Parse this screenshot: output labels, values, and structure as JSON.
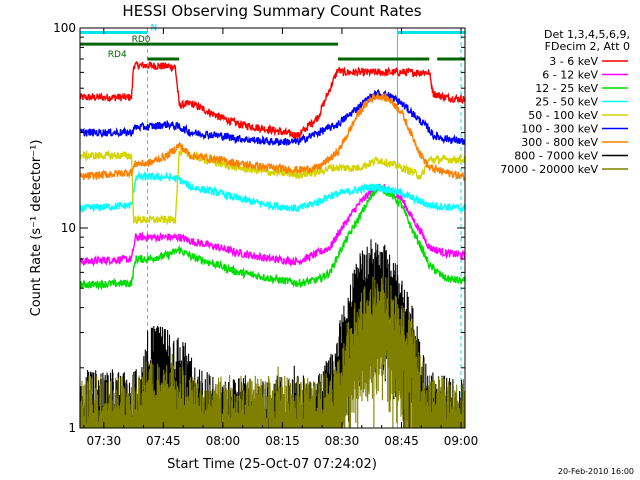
{
  "chart_data": {
    "type": "line",
    "title": "HESSI Observing Summary Count Rates",
    "xlabel": "Start Time (25-Oct-07 07:24:02)",
    "ylabel": "Count Rate (s⁻¹ detector⁻¹)",
    "x_range_minutes": [
      0,
      97
    ],
    "ylim": [
      1,
      100
    ],
    "yscale": "log",
    "x_ticks": [
      {
        "m": 6,
        "label": "07:30"
      },
      {
        "m": 21,
        "label": "07:45"
      },
      {
        "m": 36,
        "label": "08:00"
      },
      {
        "m": 51,
        "label": "08:15"
      },
      {
        "m": 66,
        "label": "08:30"
      },
      {
        "m": 81,
        "label": "08:45"
      },
      {
        "m": 96,
        "label": "09:00"
      }
    ],
    "y_ticks": [
      {
        "v": 1,
        "label": "1"
      },
      {
        "v": 10,
        "label": "10"
      },
      {
        "v": 100,
        "label": "100"
      }
    ],
    "legend_header": [
      "Det 1,3,4,5,6,9,",
      "FDecim 2, Att 0"
    ],
    "footer_date": "20-Feb-2010 16:00",
    "segments": [
      {
        "label": "N",
        "color": "#00e6e6",
        "v": 95,
        "spans": [
          [
            0,
            17
          ],
          [
            80,
            97
          ]
        ]
      },
      {
        "label": "RD0",
        "color": "#006400",
        "v": 83,
        "spans": [
          [
            0,
            65
          ]
        ]
      },
      {
        "label": "RD4",
        "color": "#006400",
        "v": 70,
        "spans": [
          [
            17,
            25
          ],
          [
            65,
            88
          ],
          [
            90,
            97
          ]
        ]
      }
    ],
    "vlines": [
      {
        "m": 0,
        "color": "#00e6e6",
        "dashed": false
      },
      {
        "m": 17,
        "color": "#00e6e6",
        "dashed": true
      },
      {
        "m": 80,
        "color": "#00e6e6",
        "dashed": false
      },
      {
        "m": 96,
        "color": "#00e6e6",
        "dashed": true
      }
    ],
    "series": [
      {
        "name": "3 - 6 keV",
        "color": "#ff0000",
        "x": [
          0,
          13,
          13.5,
          17,
          24,
          25,
          28,
          35,
          40,
          48,
          55,
          60,
          65,
          66,
          75,
          80,
          85,
          88,
          89,
          92,
          97
        ],
        "y": [
          45,
          45,
          65,
          65,
          64,
          41,
          42,
          36,
          33,
          31,
          29,
          36,
          62,
          60,
          60,
          60,
          60,
          60,
          47,
          45,
          44
        ]
      },
      {
        "name": "6 - 12 keV",
        "color": "#ff00ff",
        "x": [
          0,
          13,
          14,
          17,
          22,
          25,
          28,
          35,
          40,
          48,
          55,
          60,
          63,
          66,
          70,
          73,
          75,
          78,
          81,
          84,
          86,
          88,
          92,
          97
        ],
        "y": [
          6.8,
          7,
          9,
          9,
          9,
          9,
          8.6,
          8,
          7.5,
          7,
          6.8,
          7.5,
          8,
          10,
          13,
          15,
          16,
          15.5,
          14,
          11,
          9.5,
          8,
          7.5,
          7.3
        ]
      },
      {
        "name": "12 - 25 keV",
        "color": "#00dd00",
        "x": [
          0,
          13,
          14,
          17,
          22,
          25,
          28,
          35,
          40,
          48,
          55,
          60,
          63,
          66,
          70,
          73,
          75,
          78,
          81,
          84,
          86,
          88,
          92,
          97
        ],
        "y": [
          5.2,
          5.3,
          7,
          7,
          7.3,
          7.8,
          7.2,
          6.5,
          6,
          5.6,
          5.3,
          5.5,
          6,
          8,
          11,
          14,
          16,
          15,
          13,
          9.5,
          8,
          6.5,
          5.6,
          5.4
        ]
      },
      {
        "name": "25 - 50 keV",
        "color": "#00ffff",
        "x": [
          0,
          13,
          14,
          17,
          22,
          25,
          28,
          35,
          40,
          48,
          55,
          60,
          63,
          66,
          70,
          73,
          75,
          78,
          81,
          84,
          86,
          88,
          92,
          97
        ],
        "y": [
          12.5,
          13,
          18,
          18,
          18,
          17.5,
          16,
          15,
          14,
          13,
          12.5,
          13.5,
          14.5,
          15,
          15.5,
          16,
          16,
          15.5,
          15,
          14,
          13.5,
          13,
          12.8,
          12.5
        ]
      },
      {
        "name": "50 - 100 keV",
        "color": "#d4d400",
        "x": [
          0,
          13,
          13.5,
          17,
          24,
          25,
          28,
          35,
          40,
          48,
          55,
          60,
          63,
          66,
          70,
          73,
          75,
          78,
          81,
          84,
          86,
          88,
          92,
          97
        ],
        "y": [
          23,
          23,
          11,
          11,
          11,
          24,
          23,
          21,
          20,
          19,
          18.5,
          19,
          20,
          20,
          20,
          21,
          22,
          21,
          20,
          19,
          18,
          22,
          22,
          22
        ]
      },
      {
        "name": "100 - 300 keV",
        "color": "#0000ff",
        "x": [
          0,
          13,
          14,
          17,
          22,
          25,
          28,
          35,
          40,
          48,
          55,
          60,
          65,
          70,
          73,
          75,
          78,
          81,
          84,
          86,
          88,
          89,
          92,
          97
        ],
        "y": [
          30,
          30,
          32,
          32,
          33,
          32,
          30,
          29,
          28,
          27,
          27,
          30,
          33,
          40,
          45,
          47,
          46,
          42,
          37,
          34,
          31,
          29,
          28,
          27
        ]
      },
      {
        "name": "300 - 800 keV",
        "color": "#ff8000",
        "x": [
          0,
          13,
          14,
          17,
          22,
          25,
          28,
          35,
          40,
          48,
          55,
          60,
          65,
          68,
          70,
          73,
          75,
          78,
          81,
          84,
          86,
          88,
          92,
          97
        ],
        "y": [
          18,
          19,
          21,
          21,
          23,
          26,
          23,
          22,
          21,
          20,
          19.5,
          20,
          24,
          31,
          37,
          44,
          46,
          44,
          38,
          28,
          23,
          20,
          19,
          18
        ]
      },
      {
        "name": "800 - 7000 keV",
        "color": "#000000",
        "x": [
          0,
          15,
          17,
          20,
          25,
          30,
          35,
          45,
          55,
          60,
          64,
          66,
          68,
          70,
          72,
          75,
          78,
          80,
          82,
          84,
          85,
          86,
          88,
          90,
          97
        ],
        "y": [
          1.5,
          1.5,
          2.5,
          2.5,
          2.2,
          1.5,
          1.4,
          1.4,
          1.4,
          1.5,
          1.9,
          3,
          4,
          5.5,
          6.4,
          6.5,
          6.2,
          5,
          4,
          3,
          2.5,
          2,
          1.5,
          1.4,
          1.4
        ]
      },
      {
        "name": "7000 - 20000 keV",
        "color": "#808000",
        "x": [
          0,
          15,
          17,
          20,
          25,
          30,
          35,
          45,
          55,
          60,
          64,
          66,
          68,
          70,
          72,
          75,
          78,
          80,
          82,
          84,
          85,
          86,
          88,
          90,
          97
        ],
        "y": [
          1.4,
          1.4,
          1.7,
          1.7,
          1.6,
          1.4,
          1.4,
          1.4,
          1.4,
          1.4,
          1.5,
          2.2,
          2.8,
          3.5,
          4.2,
          4.6,
          4.3,
          3.5,
          3,
          2.5,
          2,
          1.7,
          1.4,
          1.4,
          1.4
        ]
      }
    ]
  }
}
